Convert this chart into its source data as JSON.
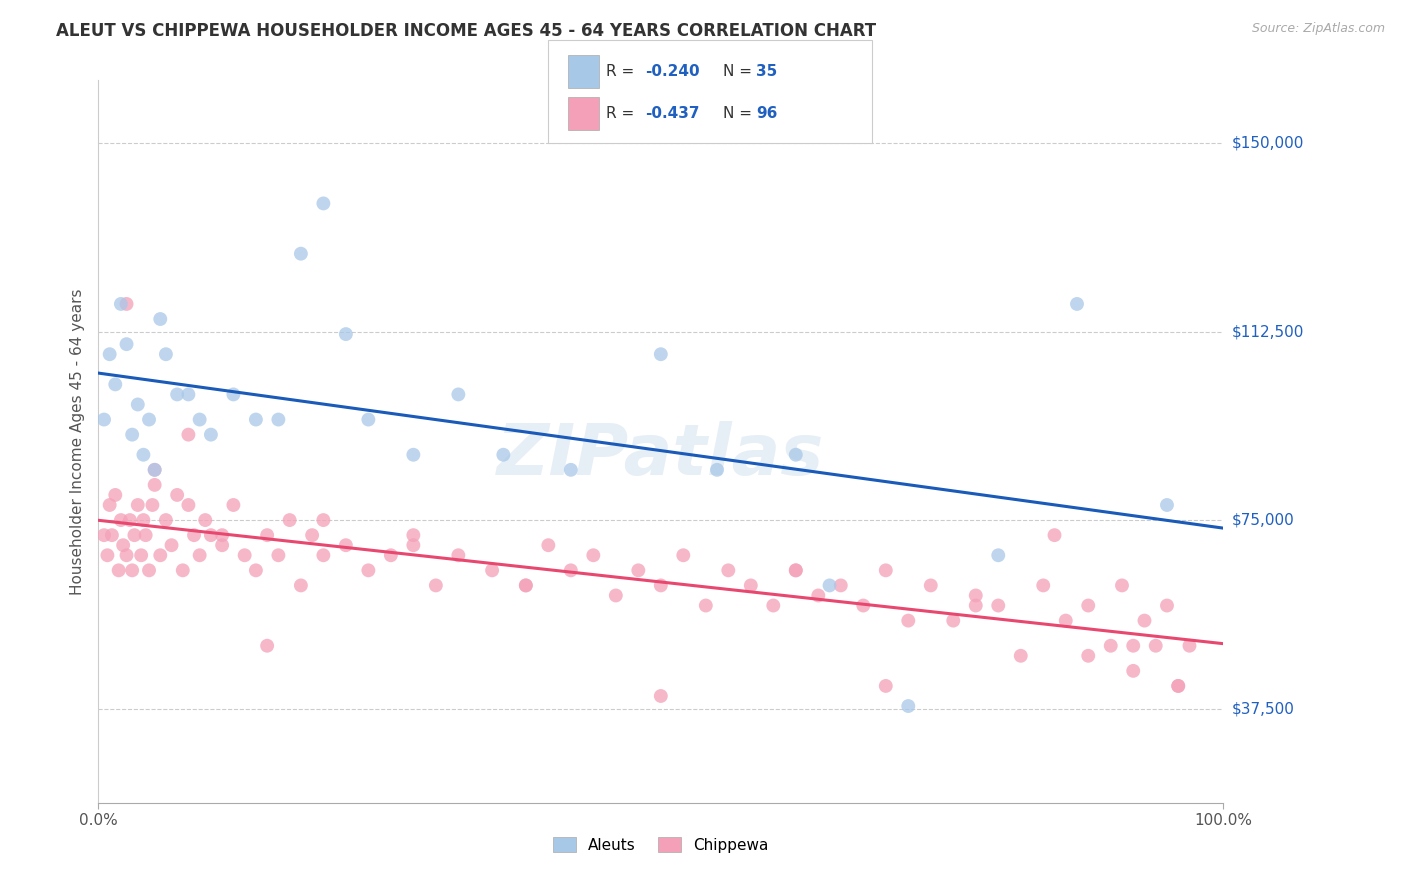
{
  "title": "ALEUT VS CHIPPEWA HOUSEHOLDER INCOME AGES 45 - 64 YEARS CORRELATION CHART",
  "source": "Source: ZipAtlas.com",
  "ylabel": "Householder Income Ages 45 - 64 years",
  "x_min": 0.0,
  "x_max": 1.0,
  "y_min": 18750,
  "y_max": 162500,
  "yticks": [
    37500,
    75000,
    112500,
    150000
  ],
  "ytick_labels": [
    "$37,500",
    "$75,000",
    "$112,500",
    "$150,000"
  ],
  "xtick_labels": [
    "0.0%",
    "100.0%"
  ],
  "aleuts_color": "#a8c8e8",
  "chippewa_color": "#f4a0b8",
  "trend_aleuts_color": "#1a5ab8",
  "trend_chippewa_color": "#e84870",
  "watermark": "ZIPatlas",
  "background_color": "#ffffff",
  "grid_color": "#cccccc",
  "legend_r_color": "#2060c0",
  "legend_n_color": "#2060c0",
  "aleuts_R": "-0.240",
  "aleuts_N": "35",
  "chippewa_R": "-0.437",
  "chippewa_N": "96",
  "aleuts_x": [
    0.005,
    0.01,
    0.015,
    0.02,
    0.025,
    0.03,
    0.035,
    0.04,
    0.045,
    0.05,
    0.055,
    0.06,
    0.07,
    0.08,
    0.09,
    0.1,
    0.12,
    0.14,
    0.16,
    0.18,
    0.2,
    0.22,
    0.24,
    0.28,
    0.32,
    0.36,
    0.42,
    0.5,
    0.55,
    0.62,
    0.65,
    0.72,
    0.8,
    0.87,
    0.95
  ],
  "aleuts_y": [
    95000,
    108000,
    102000,
    118000,
    110000,
    92000,
    98000,
    88000,
    95000,
    85000,
    115000,
    108000,
    100000,
    100000,
    95000,
    92000,
    100000,
    95000,
    95000,
    128000,
    138000,
    112000,
    95000,
    88000,
    100000,
    88000,
    85000,
    108000,
    85000,
    88000,
    62000,
    38000,
    68000,
    118000,
    78000
  ],
  "chippewa_x": [
    0.005,
    0.008,
    0.01,
    0.012,
    0.015,
    0.018,
    0.02,
    0.022,
    0.025,
    0.028,
    0.03,
    0.032,
    0.035,
    0.038,
    0.04,
    0.042,
    0.045,
    0.048,
    0.05,
    0.055,
    0.06,
    0.065,
    0.07,
    0.075,
    0.08,
    0.085,
    0.09,
    0.095,
    0.1,
    0.11,
    0.12,
    0.13,
    0.14,
    0.15,
    0.16,
    0.17,
    0.18,
    0.19,
    0.2,
    0.22,
    0.24,
    0.26,
    0.28,
    0.3,
    0.32,
    0.35,
    0.38,
    0.4,
    0.42,
    0.44,
    0.46,
    0.48,
    0.5,
    0.52,
    0.54,
    0.56,
    0.58,
    0.6,
    0.62,
    0.64,
    0.66,
    0.68,
    0.7,
    0.72,
    0.74,
    0.76,
    0.78,
    0.8,
    0.82,
    0.84,
    0.86,
    0.88,
    0.9,
    0.91,
    0.92,
    0.93,
    0.94,
    0.95,
    0.96,
    0.97,
    0.025,
    0.05,
    0.08,
    0.11,
    0.15,
    0.2,
    0.28,
    0.38,
    0.5,
    0.62,
    0.7,
    0.78,
    0.85,
    0.88,
    0.92,
    0.96
  ],
  "chippewa_y": [
    72000,
    68000,
    78000,
    72000,
    80000,
    65000,
    75000,
    70000,
    68000,
    75000,
    65000,
    72000,
    78000,
    68000,
    75000,
    72000,
    65000,
    78000,
    82000,
    68000,
    75000,
    70000,
    80000,
    65000,
    78000,
    72000,
    68000,
    75000,
    72000,
    70000,
    78000,
    68000,
    65000,
    72000,
    68000,
    75000,
    62000,
    72000,
    68000,
    70000,
    65000,
    68000,
    72000,
    62000,
    68000,
    65000,
    62000,
    70000,
    65000,
    68000,
    60000,
    65000,
    62000,
    68000,
    58000,
    65000,
    62000,
    58000,
    65000,
    60000,
    62000,
    58000,
    65000,
    55000,
    62000,
    55000,
    60000,
    58000,
    48000,
    62000,
    55000,
    58000,
    50000,
    62000,
    45000,
    55000,
    50000,
    58000,
    42000,
    50000,
    118000,
    85000,
    92000,
    72000,
    50000,
    75000,
    70000,
    62000,
    40000,
    65000,
    42000,
    58000,
    72000,
    48000,
    50000,
    42000
  ]
}
